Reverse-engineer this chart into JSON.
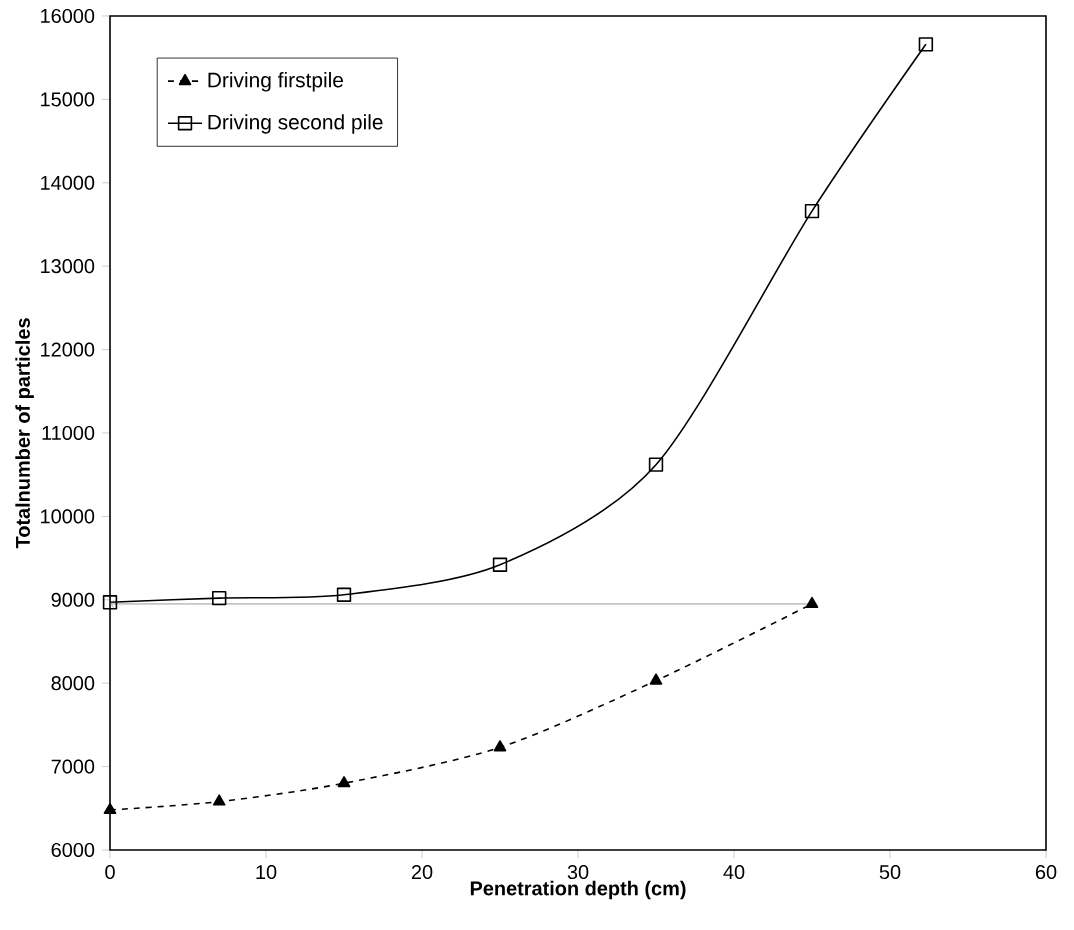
{
  "chart_data": {
    "type": "line",
    "xlabel": "Penetration depth (cm)",
    "ylabel": "Totalnumber of particles",
    "xlim": [
      0,
      60
    ],
    "xticks": [
      0,
      10,
      20,
      30,
      40,
      50,
      60
    ],
    "ylim": [
      6000,
      16000
    ],
    "yticks": [
      6000,
      7000,
      8000,
      9000,
      10000,
      11000,
      12000,
      13000,
      14000,
      15000,
      16000
    ],
    "legend": "top left",
    "series": [
      {
        "name": "Driving firstpile",
        "color": "#000000",
        "marker": "triangle",
        "line_style": "dashed",
        "x": [
          0,
          7,
          15,
          25,
          35,
          45
        ],
        "values": [
          6480,
          6580,
          6800,
          7230,
          8030,
          8950
        ]
      },
      {
        "name": "Driving second pile",
        "color": "#000000",
        "marker": "square",
        "line_style": "solid",
        "x": [
          0,
          7,
          15,
          25,
          35,
          45,
          52.3
        ],
        "values": [
          8970,
          9020,
          9060,
          9420,
          10620,
          13660,
          15660
        ]
      }
    ],
    "ref_lines": [
      {
        "axis": "y",
        "value": 8950,
        "color": "#808080"
      }
    ]
  }
}
